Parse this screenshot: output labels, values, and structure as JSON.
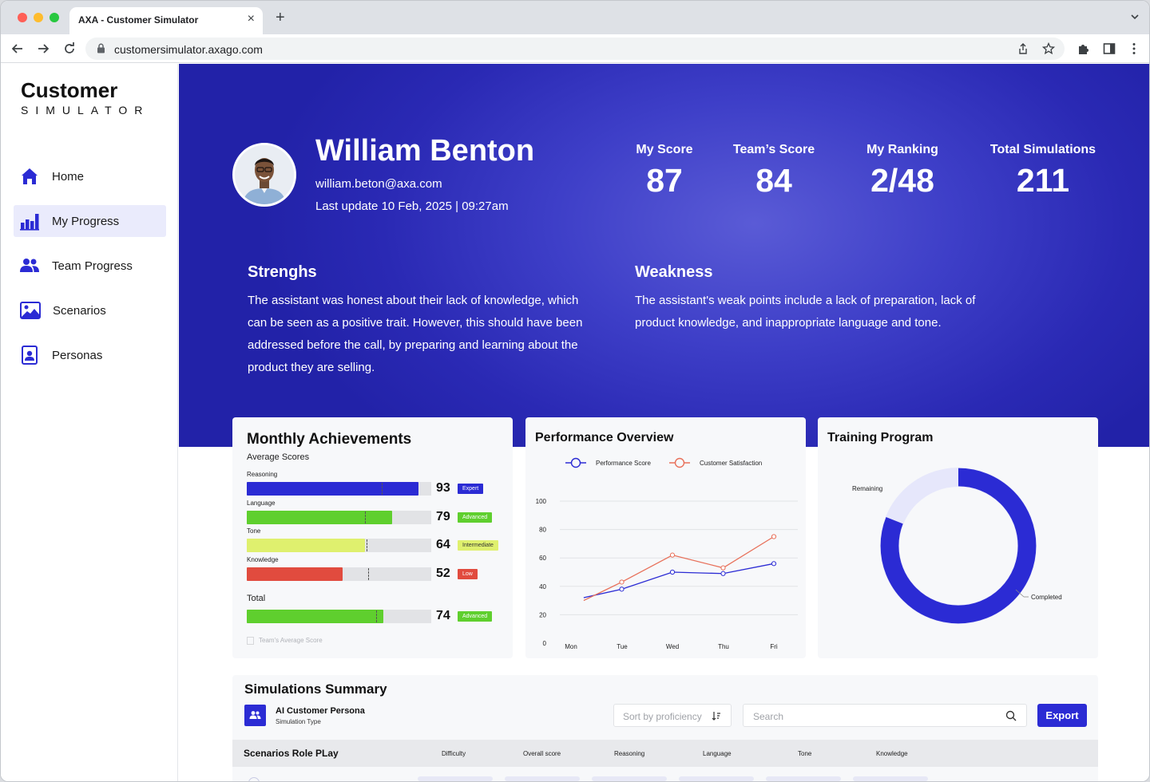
{
  "browser": {
    "tab_title": "AXA - Customer Simulator",
    "url": "customersimulator.axago.com"
  },
  "logo": {
    "main": "Customer",
    "sub": "SIMULATOR"
  },
  "sidebar": {
    "items": [
      {
        "label": "Home",
        "icon": "home-icon",
        "active": false
      },
      {
        "label": "My Progress",
        "icon": "bar-chart-icon",
        "active": true
      },
      {
        "label": "Team Progress",
        "icon": "team-icon",
        "active": false
      },
      {
        "label": "Scenarios",
        "icon": "image-icon",
        "active": false
      },
      {
        "label": "Personas",
        "icon": "badge-icon",
        "active": false
      }
    ]
  },
  "profile": {
    "name": "William Benton",
    "email": "william.beton@axa.com",
    "last_update": "Last update 10 Feb, 2025 | 09:27am"
  },
  "stats": [
    {
      "label": "My Score",
      "value": "87"
    },
    {
      "label": "Team’s Score",
      "value": "84"
    },
    {
      "label": "My Ranking",
      "value": "2/48"
    },
    {
      "label": "Total Simulations",
      "value": "211"
    }
  ],
  "strengths": {
    "title": "Strenghs",
    "lines": [
      "The assistant was honest about their lack of knowledge, which",
      "can be seen as a positive trait. However, this should have been",
      "addressed before the call, by preparing and learning about the",
      "product they are selling."
    ]
  },
  "weakness": {
    "title": "Weakness",
    "lines": [
      "The assistant's weak points include a lack of preparation, lack of",
      "product knowledge, and inappropriate language and tone."
    ]
  },
  "monthly": {
    "title": "Monthly Achievements",
    "subtitle": "Average Scores",
    "bars": [
      {
        "label": "Reasoning",
        "score": "93",
        "value": 93,
        "team": 73,
        "badge": "Expert",
        "color": "#2b2bd4",
        "badge_color": "#2b2bd4",
        "badge_text_color": "#ffffff"
      },
      {
        "label": "Language",
        "score": "79",
        "value": 79,
        "team": 64,
        "badge": "Advanced",
        "color": "#5fcf2e",
        "badge_color": "#5fcf2e",
        "badge_text_color": "#ffffff"
      },
      {
        "label": "Tone",
        "score": "64",
        "value": 64,
        "team": 65,
        "badge": "Intermediate",
        "color": "#dff06e",
        "badge_color": "#dff06e",
        "badge_text_color": "#333333"
      },
      {
        "label": "Knowledge",
        "score": "52",
        "value": 52,
        "team": 66,
        "badge": "Low",
        "color": "#e14b3e",
        "badge_color": "#e14b3e",
        "badge_text_color": "#ffffff"
      }
    ],
    "total": {
      "label": "Total",
      "score": "74",
      "value": 74,
      "team": 70,
      "badge": "Advanced",
      "color": "#5fcf2e",
      "badge_color": "#5fcf2e",
      "badge_text_color": "#ffffff"
    },
    "team_note": "Team's Average Score"
  },
  "performance": {
    "title": "Performance Overview",
    "legend": [
      "Performance Score",
      "Customer Satisfaction"
    ]
  },
  "chart_data": {
    "type": "line",
    "title": "Performance Overview",
    "categories": [
      "Mon",
      "Tue",
      "Wed",
      "Thu",
      "Fri"
    ],
    "y_ticks": [
      "100",
      "80",
      "60",
      "40",
      "20",
      "0"
    ],
    "ylim": [
      0,
      100
    ],
    "grid": true,
    "legend_position": "top",
    "series": [
      {
        "name": "Performance Score",
        "color": "#2b2bd4",
        "x": [
          0.25,
          1,
          2,
          3,
          4
        ],
        "values": [
          32,
          38,
          50,
          49,
          56
        ]
      },
      {
        "name": "Customer Satisfaction",
        "color": "#e8705a",
        "x": [
          0.25,
          1,
          2,
          3,
          4
        ],
        "values": [
          30,
          43,
          62,
          53,
          75
        ]
      }
    ]
  },
  "training": {
    "title": "Training Program",
    "remaining_label": "Remaining",
    "completed_label": "Completed",
    "completed_fraction": 0.81,
    "colors": {
      "completed": "#2b2bd4",
      "remaining": "#e6e7fb"
    }
  },
  "summary": {
    "title": "Simulations Summary",
    "persona_name": "AI Customer Persona",
    "persona_type": "Simulation Type",
    "sort_placeholder": "Sort by proficiency",
    "search_placeholder": "Search",
    "export_label": "Export",
    "table_title": "Scenarios Role PLay",
    "columns": [
      "Difficulty",
      "Overall score",
      "Reasoning",
      "Language",
      "Tone",
      "Knowledge"
    ]
  }
}
